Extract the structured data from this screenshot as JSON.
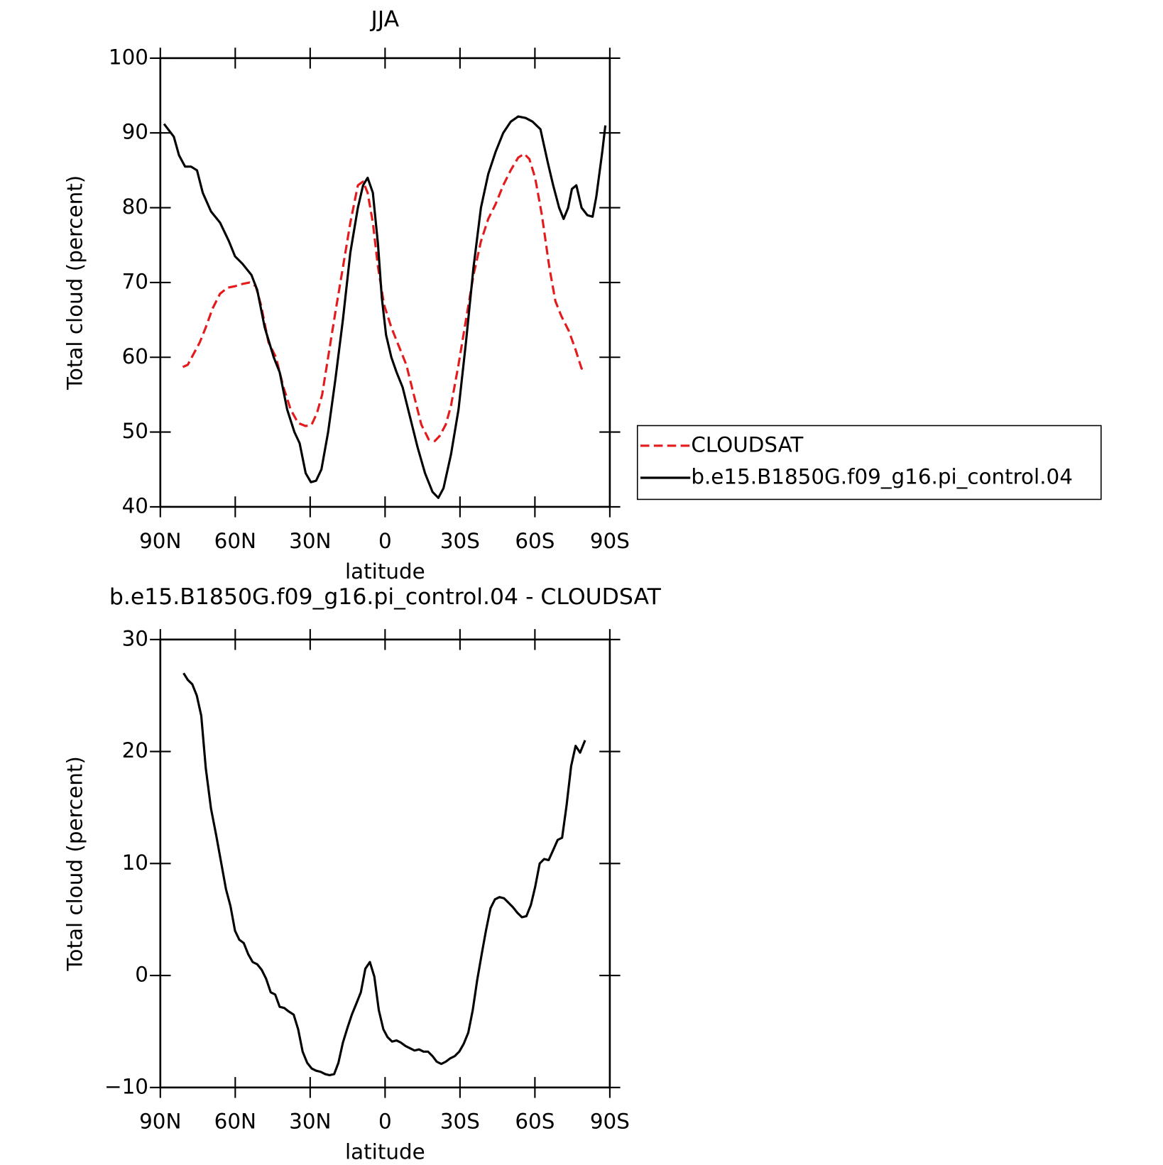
{
  "chart_data": [
    {
      "type": "line",
      "title": "JJA",
      "xlabel": "latitude",
      "ylabel": "Total cloud (percent)",
      "xlim": [
        90,
        -90
      ],
      "xticks": [
        {
          "value": 90,
          "label": "90N"
        },
        {
          "value": 60,
          "label": "60N"
        },
        {
          "value": 30,
          "label": "30N"
        },
        0,
        {
          "value": -30,
          "label": "30S"
        },
        {
          "value": -60,
          "label": "60S"
        },
        {
          "value": -90,
          "label": "90S"
        }
      ],
      "ylim": [
        40,
        100
      ],
      "yticks": [
        40,
        50,
        60,
        70,
        80,
        90,
        100
      ],
      "legend": "outside-right",
      "series": [
        {
          "name": "CLOUDSAT",
          "color": "#e41a1c",
          "line_style": "dashed",
          "x": [
            81.0,
            79.0,
            76.6,
            74.2,
            71.8,
            69.1,
            66.1,
            63.1,
            60.1,
            57.2,
            54.2,
            51.8,
            49.7,
            46.7,
            43.7,
            40.7,
            37.8,
            34.8,
            31.8,
            29.4,
            27.3,
            25.2,
            22.8,
            19.9,
            16.9,
            13.9,
            10.9,
            8.8,
            7.0,
            4.9,
            2.8,
            0.4,
            -2.5,
            -5.5,
            -8.5,
            -11.5,
            -14.5,
            -17.5,
            -19.9,
            -21.9,
            -24.3,
            -26.4,
            -29.4,
            -32.4,
            -35.4,
            -38.4,
            -41.3,
            -44.3,
            -47.3,
            -50.3,
            -53.3,
            -55.7,
            -57.8,
            -60.1,
            -62.8,
            -65.8,
            -68.2,
            -70.6,
            -73.6,
            -76.3,
            -78.7,
            -80.1
          ],
          "values": [
            58.7,
            59,
            60.5,
            62,
            64,
            66.5,
            68.5,
            69.3,
            69.5,
            69.8,
            70,
            69.5,
            67,
            62,
            60,
            56,
            53,
            51.2,
            50.8,
            51,
            52.5,
            55,
            60,
            66,
            72,
            78,
            83,
            83.5,
            82,
            78,
            72,
            67,
            64,
            61.5,
            59,
            55,
            51,
            49,
            48.8,
            49.5,
            51,
            53.5,
            59,
            65,
            71,
            75.5,
            78.5,
            80.5,
            83,
            85,
            86.7,
            87.2,
            86.5,
            84,
            79,
            72,
            67.5,
            65.5,
            63.5,
            61,
            58.5,
            58.3
          ]
        },
        {
          "name": "b.e15.B1850G.f09_g16.pi_control.04",
          "color": "#000000",
          "line_style": "solid",
          "x": [
            88.5,
            84.6,
            82.5,
            80.1,
            77.7,
            75.3,
            73.0,
            69.7,
            66.1,
            62.5,
            60.1,
            57.1,
            53.5,
            51.2,
            48.2,
            44.6,
            42.2,
            39.2,
            36.3,
            34.2,
            31.8,
            29.7,
            27.6,
            25.5,
            22.8,
            19.9,
            16.9,
            13.9,
            10.9,
            8.8,
            7.0,
            4.9,
            2.8,
            1.3,
            -0.4,
            -2.5,
            -4.6,
            -7.0,
            -10.0,
            -13.0,
            -16.0,
            -19.0,
            -21.3,
            -23.4,
            -26.4,
            -29.4,
            -32.4,
            -35.4,
            -38.4,
            -41.3,
            -44.3,
            -47.3,
            -50.3,
            -53.3,
            -56.3,
            -59.1,
            -62.2,
            -65.2,
            -67.3,
            -69.7,
            -71.5,
            -73.3,
            -74.8,
            -76.6,
            -78.7,
            -81.0,
            -83.1,
            -84.6,
            -87.0,
            -88.2
          ],
          "values": [
            91.2,
            89.5,
            87,
            85.5,
            85.5,
            85,
            82,
            79.5,
            78,
            75.5,
            73.5,
            72.5,
            71,
            69,
            64,
            60,
            58,
            53,
            50,
            48.5,
            44.5,
            43.3,
            43.5,
            45,
            50,
            57,
            65,
            74,
            80,
            83,
            84,
            82,
            75,
            68,
            63,
            60,
            58,
            56,
            52,
            48,
            44.5,
            42,
            41.2,
            42.5,
            47,
            53,
            62,
            72,
            80,
            84.5,
            87.5,
            90,
            91.5,
            92.2,
            92,
            91.5,
            90.5,
            86,
            83,
            80,
            78.5,
            80,
            82.5,
            83,
            80,
            79,
            78.8,
            81.5,
            87.5,
            91
          ]
        }
      ]
    },
    {
      "type": "line",
      "title": "b.e15.B1850G.f09_g16.pi_control.04 - CLOUDSAT",
      "xlabel": "latitude",
      "ylabel": "Total cloud (percent)",
      "xlim": [
        90,
        -90
      ],
      "xticks": [
        {
          "value": 90,
          "label": "90N"
        },
        {
          "value": 60,
          "label": "60N"
        },
        {
          "value": 30,
          "label": "30N"
        },
        0,
        {
          "value": -30,
          "label": "30S"
        },
        {
          "value": -60,
          "label": "60S"
        },
        {
          "value": -90,
          "label": "90S"
        }
      ],
      "ylim": [
        -10,
        30
      ],
      "yticks": [
        {
          "value": -10,
          "label": "−10"
        },
        0,
        10,
        20,
        30
      ],
      "series": [
        {
          "color": "#000000",
          "line_style": "solid",
          "x": [
            80.7,
            79.0,
            77.2,
            75.4,
            73.6,
            71.8,
            69.7,
            67.6,
            65.5,
            63.7,
            61.9,
            60.1,
            58.4,
            56.6,
            54.8,
            53.0,
            51.2,
            49.4,
            47.6,
            45.8,
            44.0,
            42.2,
            40.4,
            38.7,
            36.6,
            34.8,
            33.0,
            31.2,
            29.4,
            27.6,
            25.8,
            24.0,
            22.2,
            20.4,
            18.7,
            16.9,
            15.1,
            13.3,
            11.5,
            9.7,
            7.9,
            6.1,
            4.3,
            2.5,
            0.7,
            -1.0,
            -2.8,
            -4.6,
            -6.4,
            -8.2,
            -10.0,
            -11.8,
            -13.6,
            -15.4,
            -17.2,
            -19.0,
            -20.7,
            -22.5,
            -24.3,
            -26.1,
            -27.9,
            -29.7,
            -31.5,
            -33.3,
            -35.1,
            -36.9,
            -38.7,
            -40.4,
            -42.2,
            -44.0,
            -45.8,
            -47.6,
            -49.4,
            -51.2,
            -53.0,
            -54.8,
            -56.6,
            -58.4,
            -60.1,
            -61.9,
            -63.7,
            -65.5,
            -67.3,
            -69.1,
            -70.9,
            -72.7,
            -74.5,
            -76.3,
            -78.1,
            -80.1
          ],
          "values": [
            27,
            26.4,
            26,
            25,
            23.2,
            18.5,
            14.9,
            12.5,
            9.9,
            7.7,
            6.2,
            4,
            3.2,
            2.9,
            1.9,
            1.2,
            1,
            0.5,
            -0.3,
            -1.5,
            -1.7,
            -2.8,
            -2.9,
            -3.2,
            -3.5,
            -4.8,
            -6.8,
            -7.8,
            -8.3,
            -8.5,
            -8.6,
            -8.8,
            -8.9,
            -8.8,
            -7.8,
            -6,
            -4.7,
            -3.5,
            -2.5,
            -1.5,
            0.6,
            1.2,
            -0.1,
            -3.1,
            -4.8,
            -5.5,
            -5.9,
            -5.8,
            -6,
            -6.3,
            -6.5,
            -6.7,
            -6.6,
            -6.8,
            -6.8,
            -7.2,
            -7.7,
            -7.9,
            -7.7,
            -7.4,
            -7.2,
            -6.8,
            -6.1,
            -5.1,
            -3.1,
            -0.4,
            1.9,
            4,
            6,
            6.8,
            7,
            6.9,
            6.5,
            6.1,
            5.6,
            5.2,
            5.3,
            6.3,
            7.9,
            10,
            10.4,
            10.3,
            11.2,
            12.1,
            12.3,
            15.2,
            18.7,
            20.5,
            19.9,
            21
          ]
        }
      ]
    }
  ]
}
